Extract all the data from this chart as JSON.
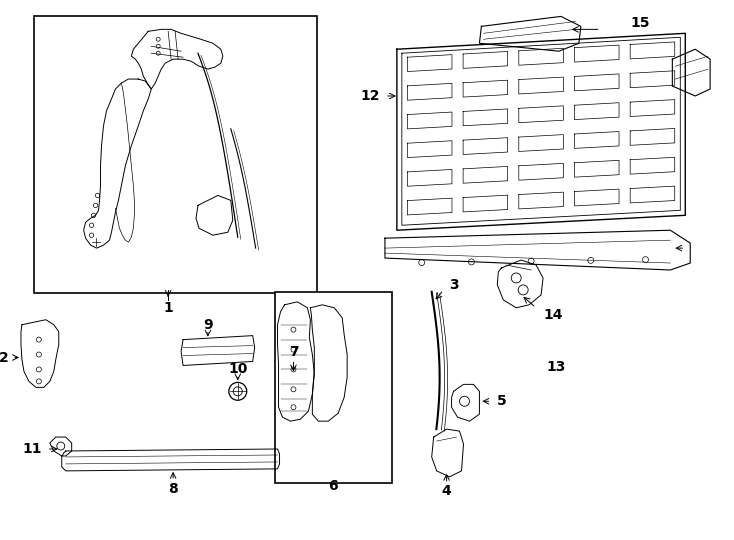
{
  "bg_color": "#ffffff",
  "line_color": "#000000",
  "figsize": [
    7.34,
    5.4
  ],
  "dpi": 100
}
